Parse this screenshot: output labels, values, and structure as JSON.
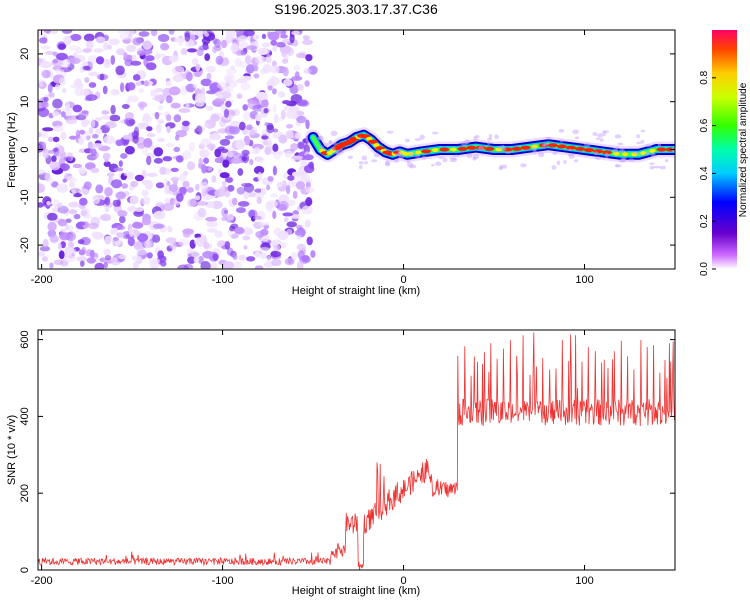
{
  "figure_title": "S196.2025.303.17.37.C36",
  "colors": {
    "snr_line": "#ee3333",
    "axis": "#000000"
  },
  "chart_data": [
    {
      "type": "heatmap",
      "name": "spectrogram",
      "xlabel": "Height of straight line (km)",
      "ylabel": "Frequency (Hz)",
      "xlim": [
        -202,
        150
      ],
      "ylim": [
        -25,
        25
      ],
      "xticks": [
        -200,
        -100,
        0,
        100
      ],
      "yticks": [
        -20,
        -10,
        0,
        10,
        20
      ],
      "noise_region_x": [
        -202,
        -50
      ],
      "signal_track": {
        "x": [
          -50,
          -46,
          -42,
          -38,
          -34,
          -30,
          -26,
          -22,
          -18,
          -14,
          -10,
          -6,
          -2,
          2,
          10,
          20,
          30,
          40,
          50,
          60,
          70,
          80,
          90,
          100,
          110,
          120,
          130,
          140,
          150
        ],
        "freq": [
          2.5,
          0,
          -1,
          0,
          1,
          1.5,
          2.5,
          3,
          2,
          0.5,
          -0.5,
          -1,
          -0.5,
          -1,
          -0.5,
          0,
          0,
          0.5,
          0,
          0,
          0.5,
          1,
          0.5,
          0,
          -0.5,
          -1,
          -1,
          0,
          0
        ]
      },
      "colorbar": {
        "label": "Normalized spectral amplitude",
        "range": [
          0,
          1
        ],
        "ticks": [
          "0.0",
          "0.2",
          "0.4",
          "0.6",
          "0.8"
        ]
      }
    },
    {
      "type": "line",
      "name": "snr",
      "xlabel": "Height of straight line (km)",
      "ylabel": "SNR (10 * v/v)",
      "xlim": [
        -202,
        150
      ],
      "ylim": [
        0,
        625
      ],
      "xticks": [
        -200,
        -100,
        0,
        100
      ],
      "yticks": [
        0,
        200,
        400,
        600
      ],
      "series": [
        {
          "name": "SNR",
          "segments": [
            {
              "x_range": [
                -202,
                -40
              ],
              "mean": 22,
              "spread": 18,
              "spike_top": 48
            },
            {
              "x_range": [
                -40,
                -32
              ],
              "mean": 50,
              "spread": 40,
              "spike_top": 100
            },
            {
              "x_range": [
                -32,
                -25
              ],
              "mean": 120,
              "spread": 60,
              "spike_top": 170
            },
            {
              "x_range": [
                -25,
                -22
              ],
              "mean": 10,
              "spread": 20,
              "spike_top": 30
            },
            {
              "x_range": [
                -22,
                15
              ],
              "mean_from": 120,
              "mean_to": 270,
              "spread": 60,
              "spike_top": 330
            },
            {
              "x_range": [
                15,
                30
              ],
              "mean": 210,
              "spread": 45,
              "spike_top": 260
            },
            {
              "x_range": [
                30,
                150
              ],
              "mean": 410,
              "spread": 70,
              "spike_top": 620,
              "spike_every": 3.6
            }
          ]
        }
      ]
    }
  ]
}
